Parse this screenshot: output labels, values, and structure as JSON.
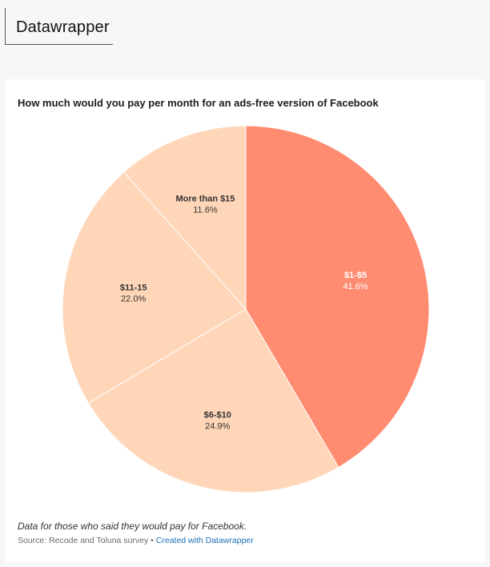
{
  "header": {
    "title": "Datawrapper"
  },
  "chart_data": {
    "type": "pie",
    "title": "How much would you pay per month for an ads-free version of Facebook",
    "slices": [
      {
        "label": "$1-$5",
        "value": 41.6,
        "value_label": "41.6%",
        "color": "#ff8b71"
      },
      {
        "label": "$6-$10",
        "value": 24.9,
        "value_label": "24.9%",
        "color": "#ffd6b8"
      },
      {
        "label": "$11-15",
        "value": 22.0,
        "value_label": "22.0%",
        "color": "#ffd6b8"
      },
      {
        "label": "More than $15",
        "value": 11.6,
        "value_label": "11.6%",
        "color": "#ffd6b8"
      }
    ],
    "start_angle_deg": 0,
    "direction": "clockwise"
  },
  "footer": {
    "notes": "Data for those who said they would pay for Facebook.",
    "source": "Source: Recode and Toluna survey",
    "separator": " • ",
    "credit": "Created with Datawrapper"
  }
}
